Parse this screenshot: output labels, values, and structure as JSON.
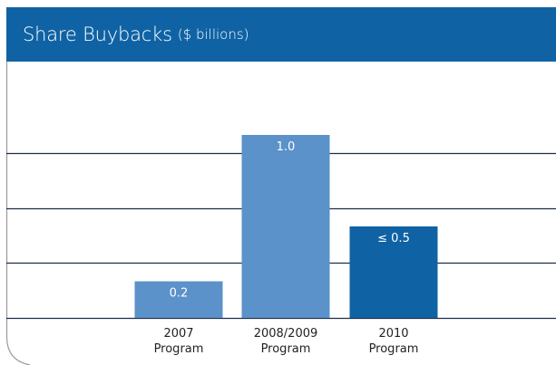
{
  "header": {
    "title": "Share Buybacks",
    "subtitle": "($ billions)"
  },
  "colors": {
    "header_bg": "#0f63a4",
    "bar_light": "#5b92c9",
    "bar_dark": "#0f63a4",
    "gridline": "#1f2d4a",
    "frame": "#9a9a9a"
  },
  "chart_data": {
    "type": "bar",
    "title": "Share Buybacks",
    "subtitle": "($ billions)",
    "categories": [
      {
        "line1": "2007",
        "line2": "Program"
      },
      {
        "line1": "2008/2009",
        "line2": "Program"
      },
      {
        "line1": "2010",
        "line2": "Program"
      }
    ],
    "values": [
      0.2,
      1.0,
      0.5
    ],
    "data_labels": [
      "0.2",
      "1.0",
      "≤ 0.5"
    ],
    "bar_colors": [
      "#5b92c9",
      "#5b92c9",
      "#0f63a4"
    ],
    "ylim": [
      0,
      1.3
    ],
    "gridlines": [
      0,
      0.3,
      0.6,
      0.9
    ],
    "grid": true,
    "legend": "none"
  }
}
